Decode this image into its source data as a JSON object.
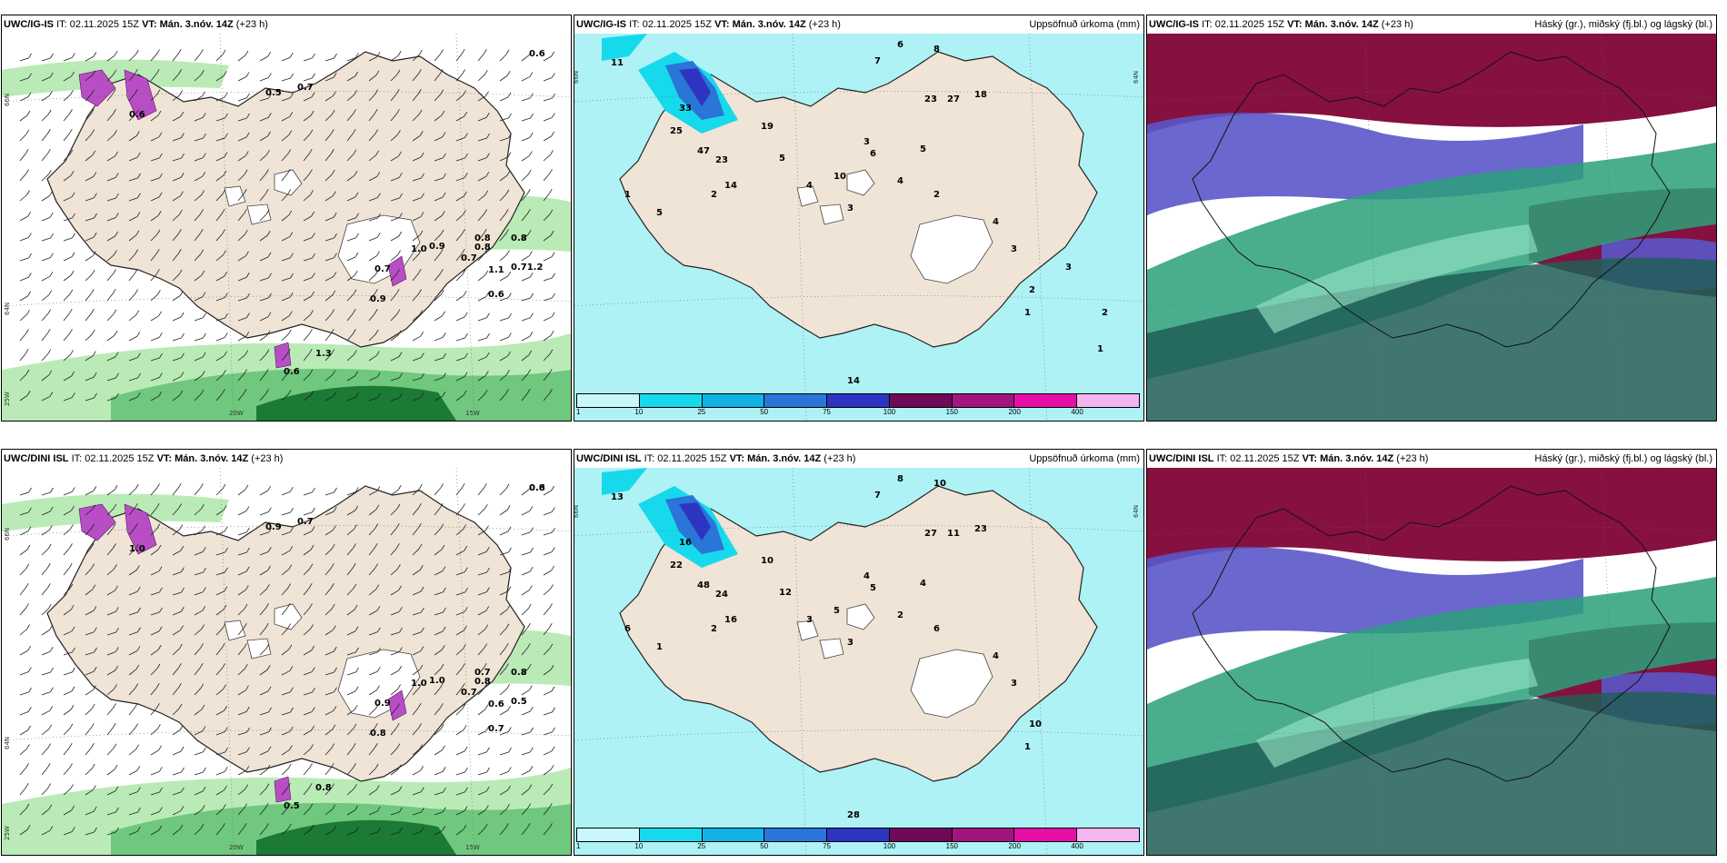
{
  "panels": [
    {
      "model": "UWC/IG-IS",
      "it_label": "IT:",
      "it": "02.11.2025 15Z",
      "vt_label": "VT:",
      "vt": "Mán. 3.nóv. 14Z",
      "lead": "(+23 h)",
      "title": "",
      "labels": [
        "0.6",
        "0.5",
        "0.7",
        "0.6",
        "0.8",
        "0.9",
        "0.8",
        "0.7",
        "0.8",
        "0.7",
        "0.9",
        "1.0",
        "1.1",
        "0.71.2",
        "0.6",
        "1.3",
        "0.6"
      ],
      "grid_labels": [
        "66N",
        "64N",
        "25W",
        "20W",
        "15W"
      ]
    },
    {
      "model": "UWC/IG-IS",
      "it_label": "IT:",
      "it": "02.11.2025 15Z",
      "vt_label": "VT:",
      "vt": "Mán. 3.nóv. 14Z",
      "lead": "(+23 h)",
      "title": "Uppsöfnuð úrkoma (mm)",
      "labels": [
        "11",
        "6",
        "8",
        "7",
        "23",
        "27",
        "18",
        "33",
        "25",
        "47",
        "23",
        "14",
        "19",
        "5",
        "10",
        "4",
        "3",
        "2",
        "1",
        "5",
        "3",
        "4",
        "5",
        "6",
        "2",
        "14",
        "4",
        "3",
        "2",
        "1",
        "3",
        "2",
        "1"
      ],
      "grid_labels": [
        "66N",
        "64N"
      ]
    },
    {
      "model": "UWC/IG-IS",
      "it_label": "IT:",
      "it": "02.11.2025 15Z",
      "vt_label": "VT:",
      "vt": "Mán. 3.nóv. 14Z",
      "lead": "(+23 h)",
      "title": "Háský (gr.), miðský (fj.bl.) og lágský (bl.)"
    },
    {
      "model": "UWC/DINI ISL",
      "it_label": "IT:",
      "it": "02.11.2025 15Z",
      "vt_label": "VT:",
      "vt": "Mán. 3.nóv. 14Z",
      "lead": "(+23 h)",
      "title": "",
      "labels": [
        "0.8",
        "0.9",
        "0.7",
        "1.0",
        "0.8",
        "1.0",
        "0.7",
        "0.7",
        "0.8",
        "0.9",
        "0.8",
        "1.0",
        "0.6",
        "0.5",
        "0.7",
        "0.8",
        "0.5",
        "0.6"
      ],
      "grid_labels": [
        "66N",
        "64N",
        "25W",
        "20W",
        "15W"
      ]
    },
    {
      "model": "UWC/DINI ISL",
      "it_label": "IT:",
      "it": "02.11.2025 15Z",
      "vt_label": "VT:",
      "vt": "Mán. 3.nóv. 14Z",
      "lead": "(+23 h)",
      "title": "Uppsöfnuð úrkoma (mm)",
      "labels": [
        "13",
        "8",
        "10",
        "7",
        "27",
        "11",
        "23",
        "16",
        "22",
        "48",
        "24",
        "16",
        "10",
        "12",
        "5",
        "3",
        "4",
        "2",
        "6",
        "1",
        "3",
        "2",
        "4",
        "5",
        "6",
        "28",
        "4",
        "3",
        "10",
        "1"
      ],
      "grid_labels": [
        "66N",
        "64N"
      ]
    },
    {
      "model": "UWC/DINI ISL",
      "it_label": "IT:",
      "it": "02.11.2025 15Z",
      "vt_label": "VT:",
      "vt": "Mán. 3.nóv. 14Z",
      "lead": "(+23 h)",
      "title": "Háský (gr.), miðský (fj.bl.) og lágský (bl.)"
    }
  ],
  "colorbar": {
    "ticks": [
      "1",
      "10",
      "25",
      "50",
      "75",
      "100",
      "150",
      "200",
      "400"
    ],
    "colors": [
      "#c8f8fb",
      "#17d9ec",
      "#12b2e4",
      "#2a75d8",
      "#2d34c2",
      "#6f0a58",
      "#a3157e",
      "#e60fa6",
      "#f5b5f0"
    ]
  },
  "colors": {
    "land": "#efe4d6",
    "precip_fill": "#aef2f6",
    "green_light": "#b6eab3",
    "green_mid": "#6fc87e",
    "green_dark": "#1b7a34",
    "purple": "#b84ec6",
    "cloud_high": "#86103f",
    "cloud_mid": "#5a57c9",
    "cloud_low": "#2aa07a",
    "cloud_dark": "#205e57"
  }
}
